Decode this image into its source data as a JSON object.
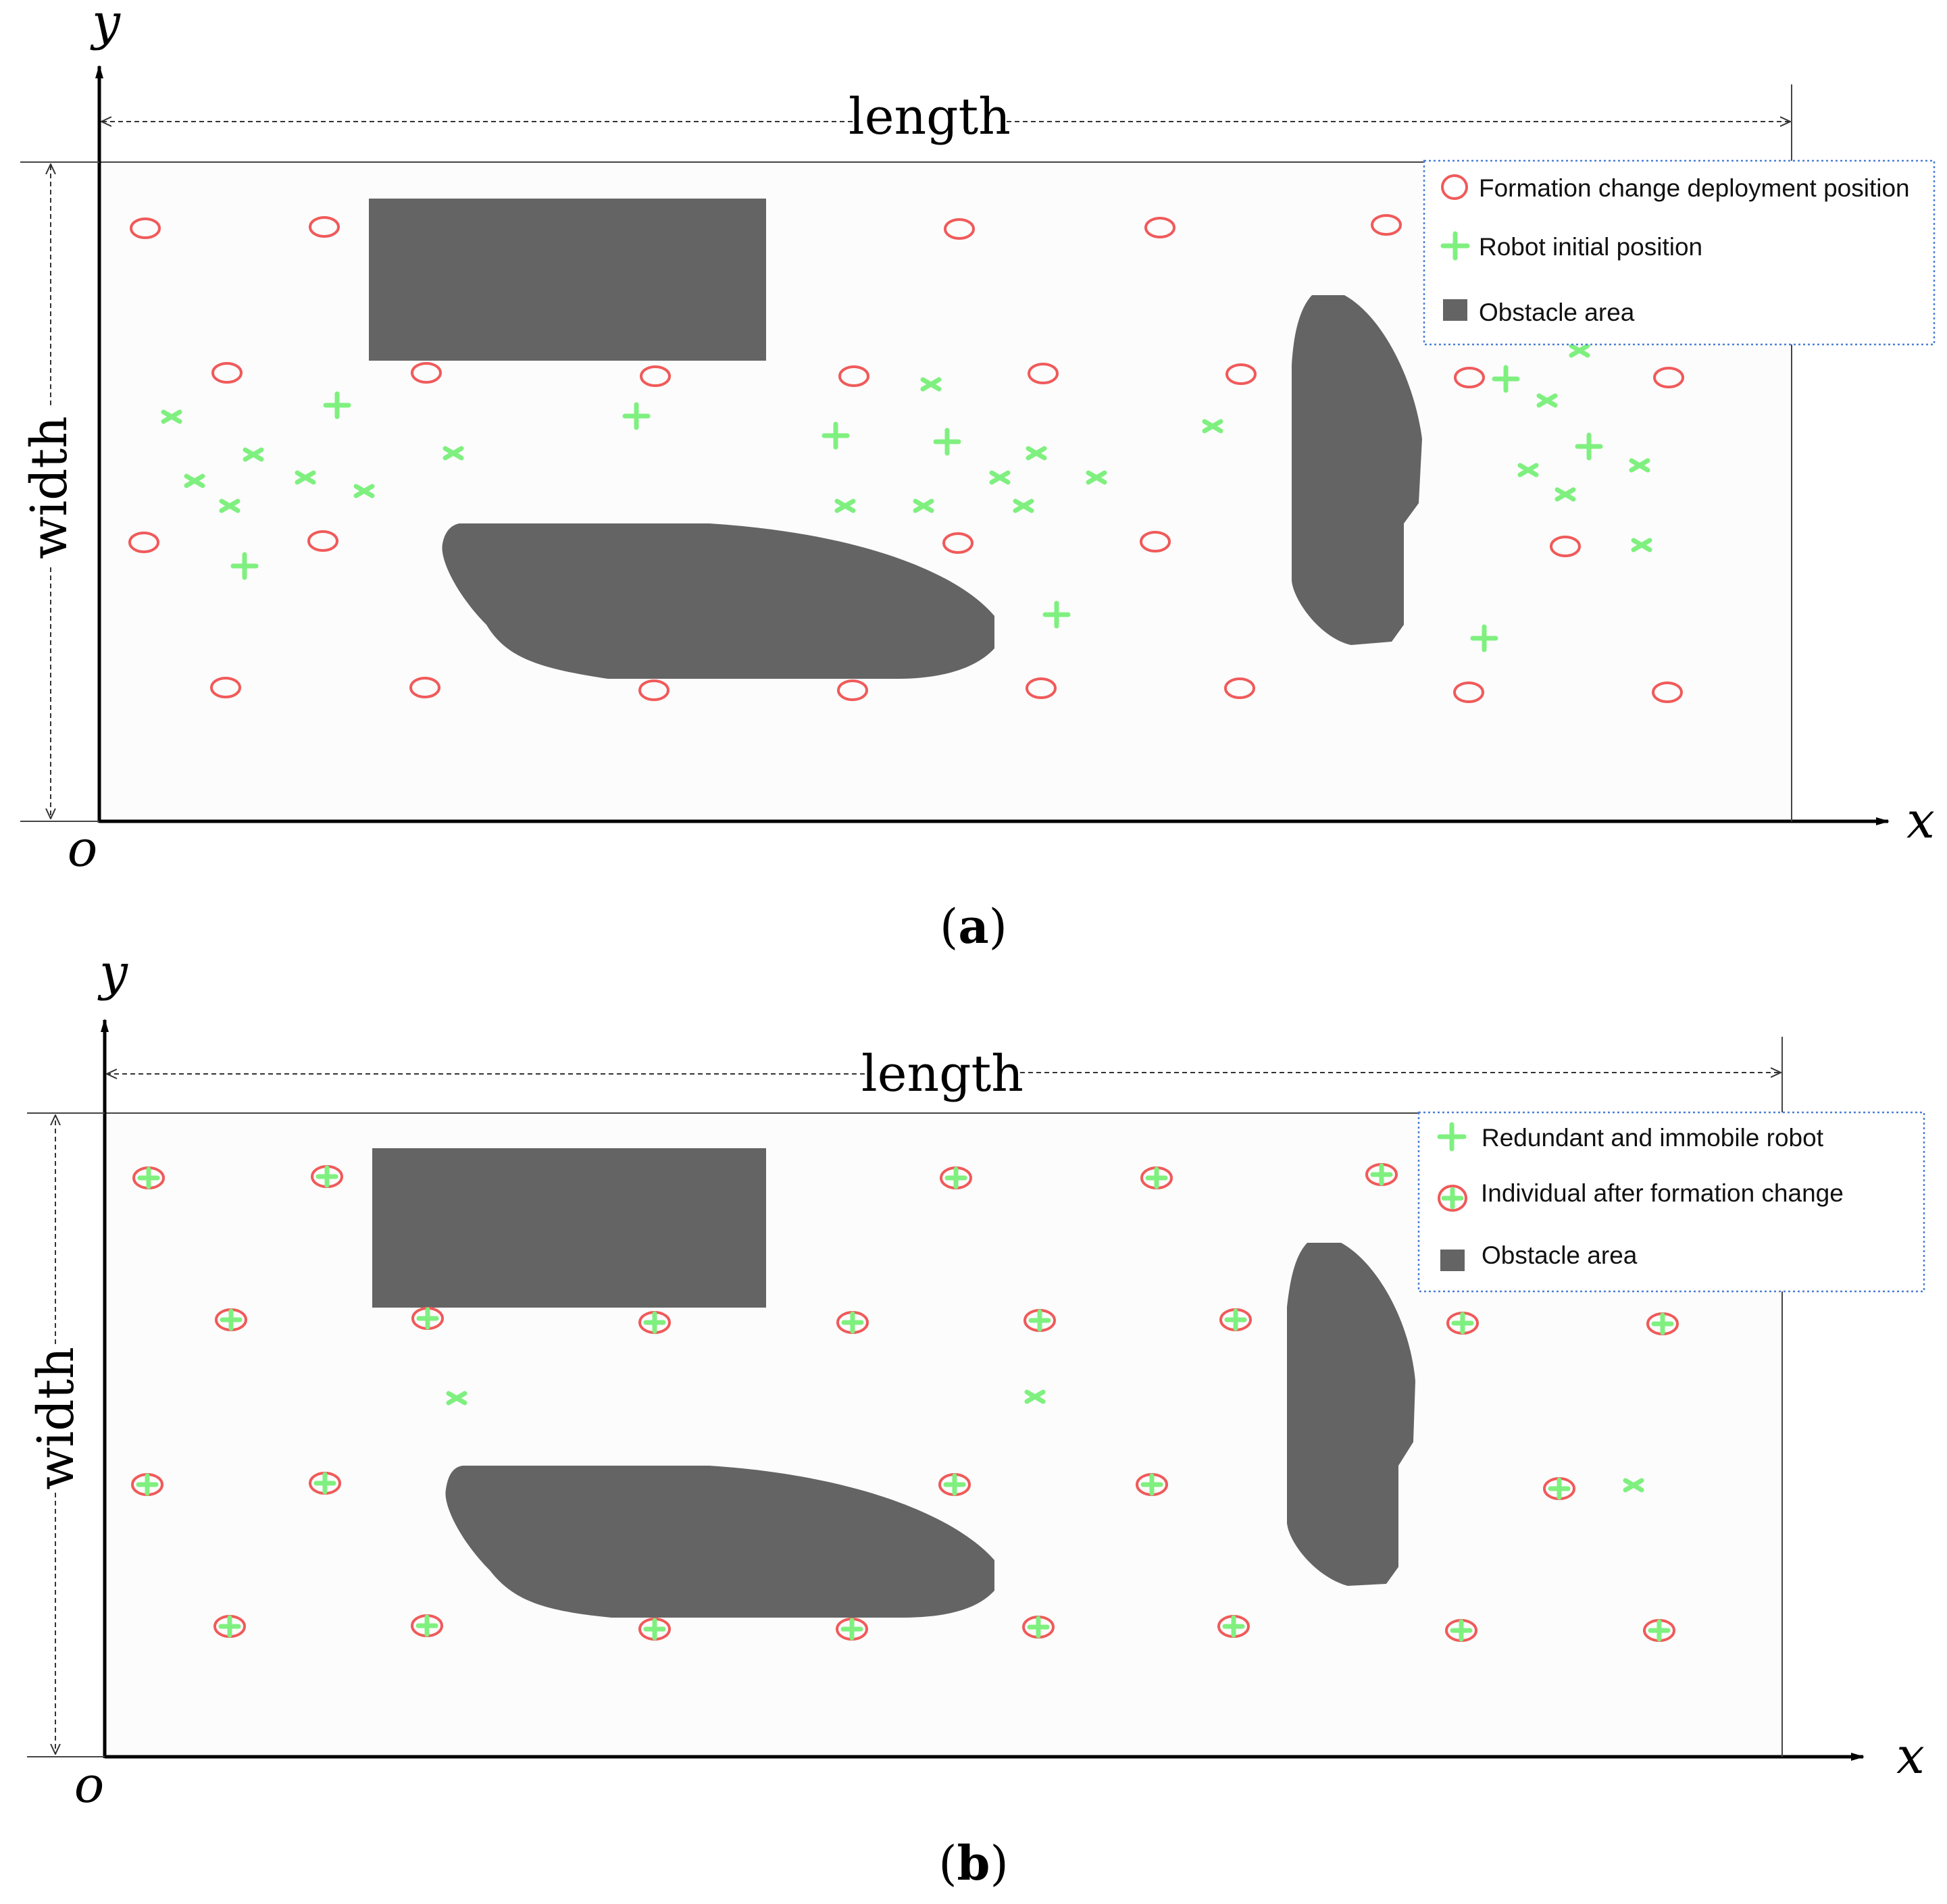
{
  "colors": {
    "deployment_circle": "#f05a5a",
    "robot_marker": "#7ff07f",
    "obstacle": "#646464",
    "field_background": "#fcfcfc",
    "legend_border": "#4a7fd6"
  },
  "icons": [
    "red-circle-marker",
    "green-plus-marker",
    "green-x-marker",
    "circle-with-plus-marker",
    "gray-square-marker",
    "axis-arrow"
  ],
  "panels": [
    {
      "id": "a",
      "caption_open": "(",
      "caption_letter": "a",
      "caption_close": ")",
      "axis_x": "x",
      "axis_y": "y",
      "origin": "o",
      "length_label": "length",
      "width_label": "width",
      "legend": [
        {
          "icon": "red-circle-marker",
          "label": "Formation change deployment position"
        },
        {
          "icon": "green-plus-marker",
          "label": "Robot initial position"
        },
        {
          "icon": "gray-square-marker",
          "label": "Obstacle area"
        }
      ]
    },
    {
      "id": "b",
      "caption_open": "(",
      "caption_letter": "b",
      "caption_close": ")",
      "axis_x": "x",
      "axis_y": "y",
      "origin": "o",
      "length_label": "length",
      "width_label": "width",
      "legend": [
        {
          "icon": "green-plus-marker",
          "label": "Redundant and immobile robot"
        },
        {
          "icon": "circle-with-plus-marker",
          "label": "Individual after formation change"
        },
        {
          "icon": "gray-square-marker",
          "label": "Obstacle area"
        }
      ]
    }
  ]
}
